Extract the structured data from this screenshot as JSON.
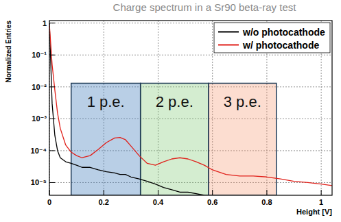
{
  "chart_data": {
    "type": "line",
    "title": "Charge spectrum in a Sr90 beta-ray test",
    "x_label": "Height [V]",
    "y_label": "Normalized Entries",
    "log": "y",
    "grid": true,
    "legend": "upper right",
    "xlim": [
      0,
      1.04
    ],
    "ylim": [
      4e-06,
      1.2
    ],
    "xticks": [
      0,
      0.2,
      0.4,
      0.6,
      0.8,
      1
    ],
    "yticks": [
      {
        "value": 1e-05,
        "label": "10⁻⁵"
      },
      {
        "value": 0.0001,
        "label": "10⁻⁴"
      },
      {
        "value": 0.001,
        "label": "10⁻³"
      },
      {
        "value": 0.01,
        "label": "10⁻²"
      },
      {
        "value": 0.1,
        "label": "10⁻¹"
      },
      1
    ],
    "x": [
      0,
      0.01,
      0.02,
      0.03,
      0.04,
      0.06,
      0.08,
      0.1,
      0.12,
      0.15,
      0.18,
      0.21,
      0.24,
      0.26,
      0.28,
      0.3,
      0.33,
      0.36,
      0.39,
      0.42,
      0.45,
      0.48,
      0.51,
      0.54,
      0.57,
      0.6,
      0.65,
      0.7,
      0.75,
      0.8,
      0.85,
      0.9,
      0.95,
      1.0,
      1.04
    ],
    "series": [
      {
        "name": "w/o photocathode",
        "color": "#000000",
        "values": [
          1,
          0.003,
          0.0003,
          0.0001,
          6e-05,
          4.5e-05,
          4e-05,
          3.5e-05,
          3e-05,
          3e-05,
          2.5e-05,
          2.2e-05,
          2e-05,
          1.8e-05,
          1.8e-05,
          1.5e-05,
          1.3e-05,
          1.1e-05,
          9e-06,
          7e-06,
          6e-06,
          5e-06,
          5e-06,
          4.5e-06,
          4e-06,
          null,
          null,
          null,
          null,
          null,
          null,
          null,
          null,
          null,
          null
        ]
      },
      {
        "name": "w/ photocathode",
        "color": "#e0201a",
        "values": [
          0.9,
          0.05,
          0.008,
          0.0015,
          0.0005,
          0.00015,
          9e-05,
          7e-05,
          6e-05,
          7e-05,
          0.00011,
          0.00018,
          0.00025,
          0.00026,
          0.00022,
          0.00014,
          7e-05,
          4e-05,
          3.5e-05,
          4.5e-05,
          5.5e-05,
          6e-05,
          5.5e-05,
          4.5e-05,
          3.5e-05,
          2.5e-05,
          1.8e-05,
          1.6e-05,
          1.6e-05,
          1.5e-05,
          1.3e-05,
          1.1e-05,
          1e-05,
          9e-06,
          8e-06
        ]
      }
    ],
    "annotations": [
      {
        "text": "1 p.e.",
        "x": [
          0.08,
          0.335
        ],
        "y": [
          4e-06,
          0.013
        ]
      },
      {
        "text": "2 p.e.",
        "x": [
          0.335,
          0.585
        ],
        "y": [
          4e-06,
          0.013
        ]
      },
      {
        "text": "3 p.e.",
        "x": [
          0.585,
          0.835
        ],
        "y": [
          4e-06,
          0.013
        ]
      }
    ]
  }
}
